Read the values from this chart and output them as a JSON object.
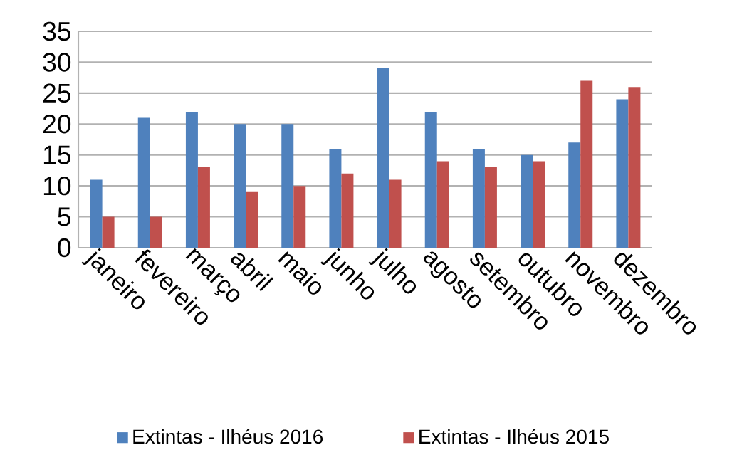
{
  "chart_data": {
    "type": "bar",
    "categories": [
      "janeiro",
      "fevereiro",
      "março",
      "abril",
      "maio",
      "junho",
      "julho",
      "agosto",
      "setembro",
      "outubro",
      "novembro",
      "dezembro"
    ],
    "series": [
      {
        "name": "Extintas - Ilhéus 2016",
        "color": "#4f81bd",
        "values": [
          11,
          21,
          22,
          20,
          20,
          16,
          29,
          22,
          16,
          15,
          17,
          24
        ]
      },
      {
        "name": "Extintas - Ilhéus 2015",
        "color": "#c0504d",
        "values": [
          5,
          5,
          13,
          9,
          10,
          12,
          11,
          14,
          13,
          14,
          27,
          26
        ]
      }
    ],
    "ylim": [
      0,
      35
    ],
    "yticks": [
      0,
      5,
      10,
      15,
      20,
      25,
      30,
      35
    ],
    "grid": "y",
    "legend": "bottom"
  }
}
